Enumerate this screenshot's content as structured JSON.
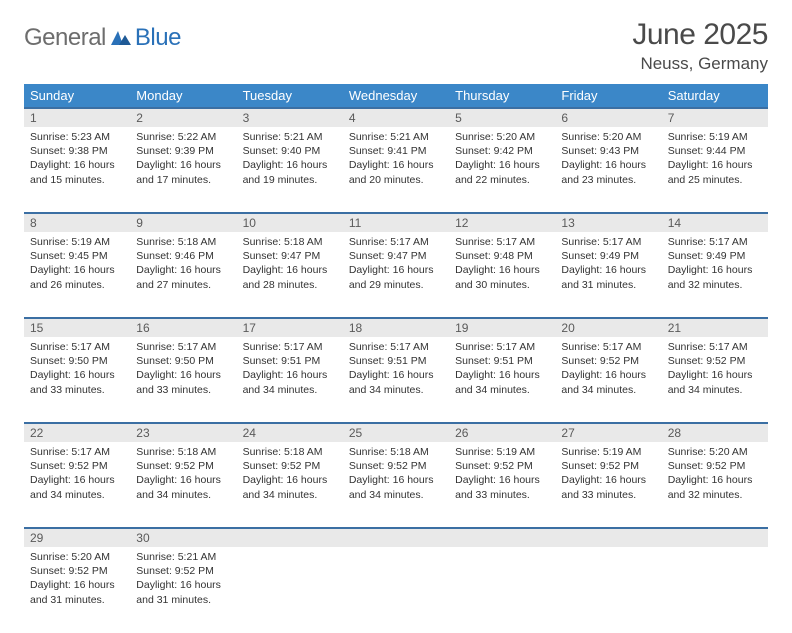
{
  "brand": {
    "part1": "General",
    "part2": "Blue"
  },
  "title": "June 2025",
  "location": "Neuss, Germany",
  "colors": {
    "header_bg": "#3b87c8",
    "header_text": "#ffffff",
    "rule": "#3b6fa3",
    "daynum_bg": "#e9e9e9",
    "brand_gray": "#6d6d6d",
    "brand_blue": "#2a71b8"
  },
  "weekdays": [
    "Sunday",
    "Monday",
    "Tuesday",
    "Wednesday",
    "Thursday",
    "Friday",
    "Saturday"
  ],
  "weeks": [
    {
      "days": [
        {
          "num": "1",
          "sunrise": "Sunrise: 5:23 AM",
          "sunset": "Sunset: 9:38 PM",
          "day1": "Daylight: 16 hours",
          "day2": "and 15 minutes."
        },
        {
          "num": "2",
          "sunrise": "Sunrise: 5:22 AM",
          "sunset": "Sunset: 9:39 PM",
          "day1": "Daylight: 16 hours",
          "day2": "and 17 minutes."
        },
        {
          "num": "3",
          "sunrise": "Sunrise: 5:21 AM",
          "sunset": "Sunset: 9:40 PM",
          "day1": "Daylight: 16 hours",
          "day2": "and 19 minutes."
        },
        {
          "num": "4",
          "sunrise": "Sunrise: 5:21 AM",
          "sunset": "Sunset: 9:41 PM",
          "day1": "Daylight: 16 hours",
          "day2": "and 20 minutes."
        },
        {
          "num": "5",
          "sunrise": "Sunrise: 5:20 AM",
          "sunset": "Sunset: 9:42 PM",
          "day1": "Daylight: 16 hours",
          "day2": "and 22 minutes."
        },
        {
          "num": "6",
          "sunrise": "Sunrise: 5:20 AM",
          "sunset": "Sunset: 9:43 PM",
          "day1": "Daylight: 16 hours",
          "day2": "and 23 minutes."
        },
        {
          "num": "7",
          "sunrise": "Sunrise: 5:19 AM",
          "sunset": "Sunset: 9:44 PM",
          "day1": "Daylight: 16 hours",
          "day2": "and 25 minutes."
        }
      ]
    },
    {
      "days": [
        {
          "num": "8",
          "sunrise": "Sunrise: 5:19 AM",
          "sunset": "Sunset: 9:45 PM",
          "day1": "Daylight: 16 hours",
          "day2": "and 26 minutes."
        },
        {
          "num": "9",
          "sunrise": "Sunrise: 5:18 AM",
          "sunset": "Sunset: 9:46 PM",
          "day1": "Daylight: 16 hours",
          "day2": "and 27 minutes."
        },
        {
          "num": "10",
          "sunrise": "Sunrise: 5:18 AM",
          "sunset": "Sunset: 9:47 PM",
          "day1": "Daylight: 16 hours",
          "day2": "and 28 minutes."
        },
        {
          "num": "11",
          "sunrise": "Sunrise: 5:17 AM",
          "sunset": "Sunset: 9:47 PM",
          "day1": "Daylight: 16 hours",
          "day2": "and 29 minutes."
        },
        {
          "num": "12",
          "sunrise": "Sunrise: 5:17 AM",
          "sunset": "Sunset: 9:48 PM",
          "day1": "Daylight: 16 hours",
          "day2": "and 30 minutes."
        },
        {
          "num": "13",
          "sunrise": "Sunrise: 5:17 AM",
          "sunset": "Sunset: 9:49 PM",
          "day1": "Daylight: 16 hours",
          "day2": "and 31 minutes."
        },
        {
          "num": "14",
          "sunrise": "Sunrise: 5:17 AM",
          "sunset": "Sunset: 9:49 PM",
          "day1": "Daylight: 16 hours",
          "day2": "and 32 minutes."
        }
      ]
    },
    {
      "days": [
        {
          "num": "15",
          "sunrise": "Sunrise: 5:17 AM",
          "sunset": "Sunset: 9:50 PM",
          "day1": "Daylight: 16 hours",
          "day2": "and 33 minutes."
        },
        {
          "num": "16",
          "sunrise": "Sunrise: 5:17 AM",
          "sunset": "Sunset: 9:50 PM",
          "day1": "Daylight: 16 hours",
          "day2": "and 33 minutes."
        },
        {
          "num": "17",
          "sunrise": "Sunrise: 5:17 AM",
          "sunset": "Sunset: 9:51 PM",
          "day1": "Daylight: 16 hours",
          "day2": "and 34 minutes."
        },
        {
          "num": "18",
          "sunrise": "Sunrise: 5:17 AM",
          "sunset": "Sunset: 9:51 PM",
          "day1": "Daylight: 16 hours",
          "day2": "and 34 minutes."
        },
        {
          "num": "19",
          "sunrise": "Sunrise: 5:17 AM",
          "sunset": "Sunset: 9:51 PM",
          "day1": "Daylight: 16 hours",
          "day2": "and 34 minutes."
        },
        {
          "num": "20",
          "sunrise": "Sunrise: 5:17 AM",
          "sunset": "Sunset: 9:52 PM",
          "day1": "Daylight: 16 hours",
          "day2": "and 34 minutes."
        },
        {
          "num": "21",
          "sunrise": "Sunrise: 5:17 AM",
          "sunset": "Sunset: 9:52 PM",
          "day1": "Daylight: 16 hours",
          "day2": "and 34 minutes."
        }
      ]
    },
    {
      "days": [
        {
          "num": "22",
          "sunrise": "Sunrise: 5:17 AM",
          "sunset": "Sunset: 9:52 PM",
          "day1": "Daylight: 16 hours",
          "day2": "and 34 minutes."
        },
        {
          "num": "23",
          "sunrise": "Sunrise: 5:18 AM",
          "sunset": "Sunset: 9:52 PM",
          "day1": "Daylight: 16 hours",
          "day2": "and 34 minutes."
        },
        {
          "num": "24",
          "sunrise": "Sunrise: 5:18 AM",
          "sunset": "Sunset: 9:52 PM",
          "day1": "Daylight: 16 hours",
          "day2": "and 34 minutes."
        },
        {
          "num": "25",
          "sunrise": "Sunrise: 5:18 AM",
          "sunset": "Sunset: 9:52 PM",
          "day1": "Daylight: 16 hours",
          "day2": "and 34 minutes."
        },
        {
          "num": "26",
          "sunrise": "Sunrise: 5:19 AM",
          "sunset": "Sunset: 9:52 PM",
          "day1": "Daylight: 16 hours",
          "day2": "and 33 minutes."
        },
        {
          "num": "27",
          "sunrise": "Sunrise: 5:19 AM",
          "sunset": "Sunset: 9:52 PM",
          "day1": "Daylight: 16 hours",
          "day2": "and 33 minutes."
        },
        {
          "num": "28",
          "sunrise": "Sunrise: 5:20 AM",
          "sunset": "Sunset: 9:52 PM",
          "day1": "Daylight: 16 hours",
          "day2": "and 32 minutes."
        }
      ]
    },
    {
      "days": [
        {
          "num": "29",
          "sunrise": "Sunrise: 5:20 AM",
          "sunset": "Sunset: 9:52 PM",
          "day1": "Daylight: 16 hours",
          "day2": "and 31 minutes."
        },
        {
          "num": "30",
          "sunrise": "Sunrise: 5:21 AM",
          "sunset": "Sunset: 9:52 PM",
          "day1": "Daylight: 16 hours",
          "day2": "and 31 minutes."
        },
        null,
        null,
        null,
        null,
        null
      ]
    }
  ]
}
